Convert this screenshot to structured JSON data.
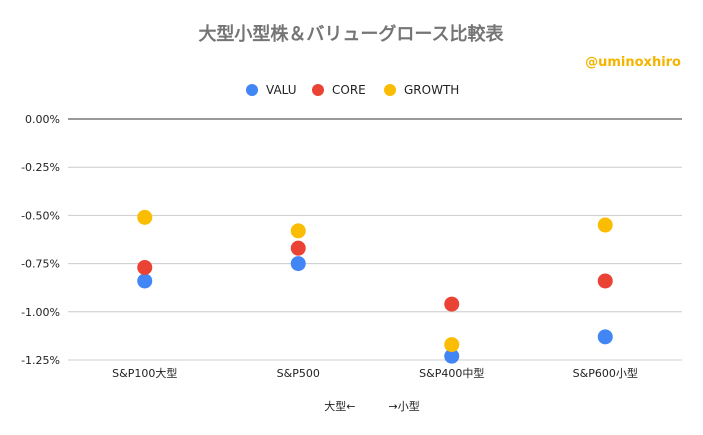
{
  "chart_data": {
    "type": "scatter",
    "title": "大型小型株＆バリューグロース比較表",
    "watermark": "@uminoxhiro",
    "xlabel": "大型←　　　→小型",
    "ylabel": "",
    "categories": [
      "S&P100大型",
      "S&P500",
      "S&P400中型",
      "S&P600小型"
    ],
    "ylim": [
      -1.25,
      0.0
    ],
    "yticks": [
      0.0,
      -0.25,
      -0.5,
      -0.75,
      -1.0,
      -1.25
    ],
    "ytick_labels": [
      "0.00%",
      "-0.25%",
      "-0.50%",
      "-0.75%",
      "-1.00%",
      "-1.25%"
    ],
    "grid": true,
    "legend_position": "top",
    "series": [
      {
        "name": "VALU",
        "color": "#4285f4",
        "values": [
          -0.84,
          -0.75,
          -1.23,
          -1.13
        ]
      },
      {
        "name": "CORE",
        "color": "#ea4335",
        "values": [
          -0.77,
          -0.67,
          -0.96,
          -0.84
        ]
      },
      {
        "name": "GROWTH",
        "color": "#fbbc04",
        "values": [
          -0.51,
          -0.58,
          -1.17,
          -0.55
        ]
      }
    ]
  }
}
